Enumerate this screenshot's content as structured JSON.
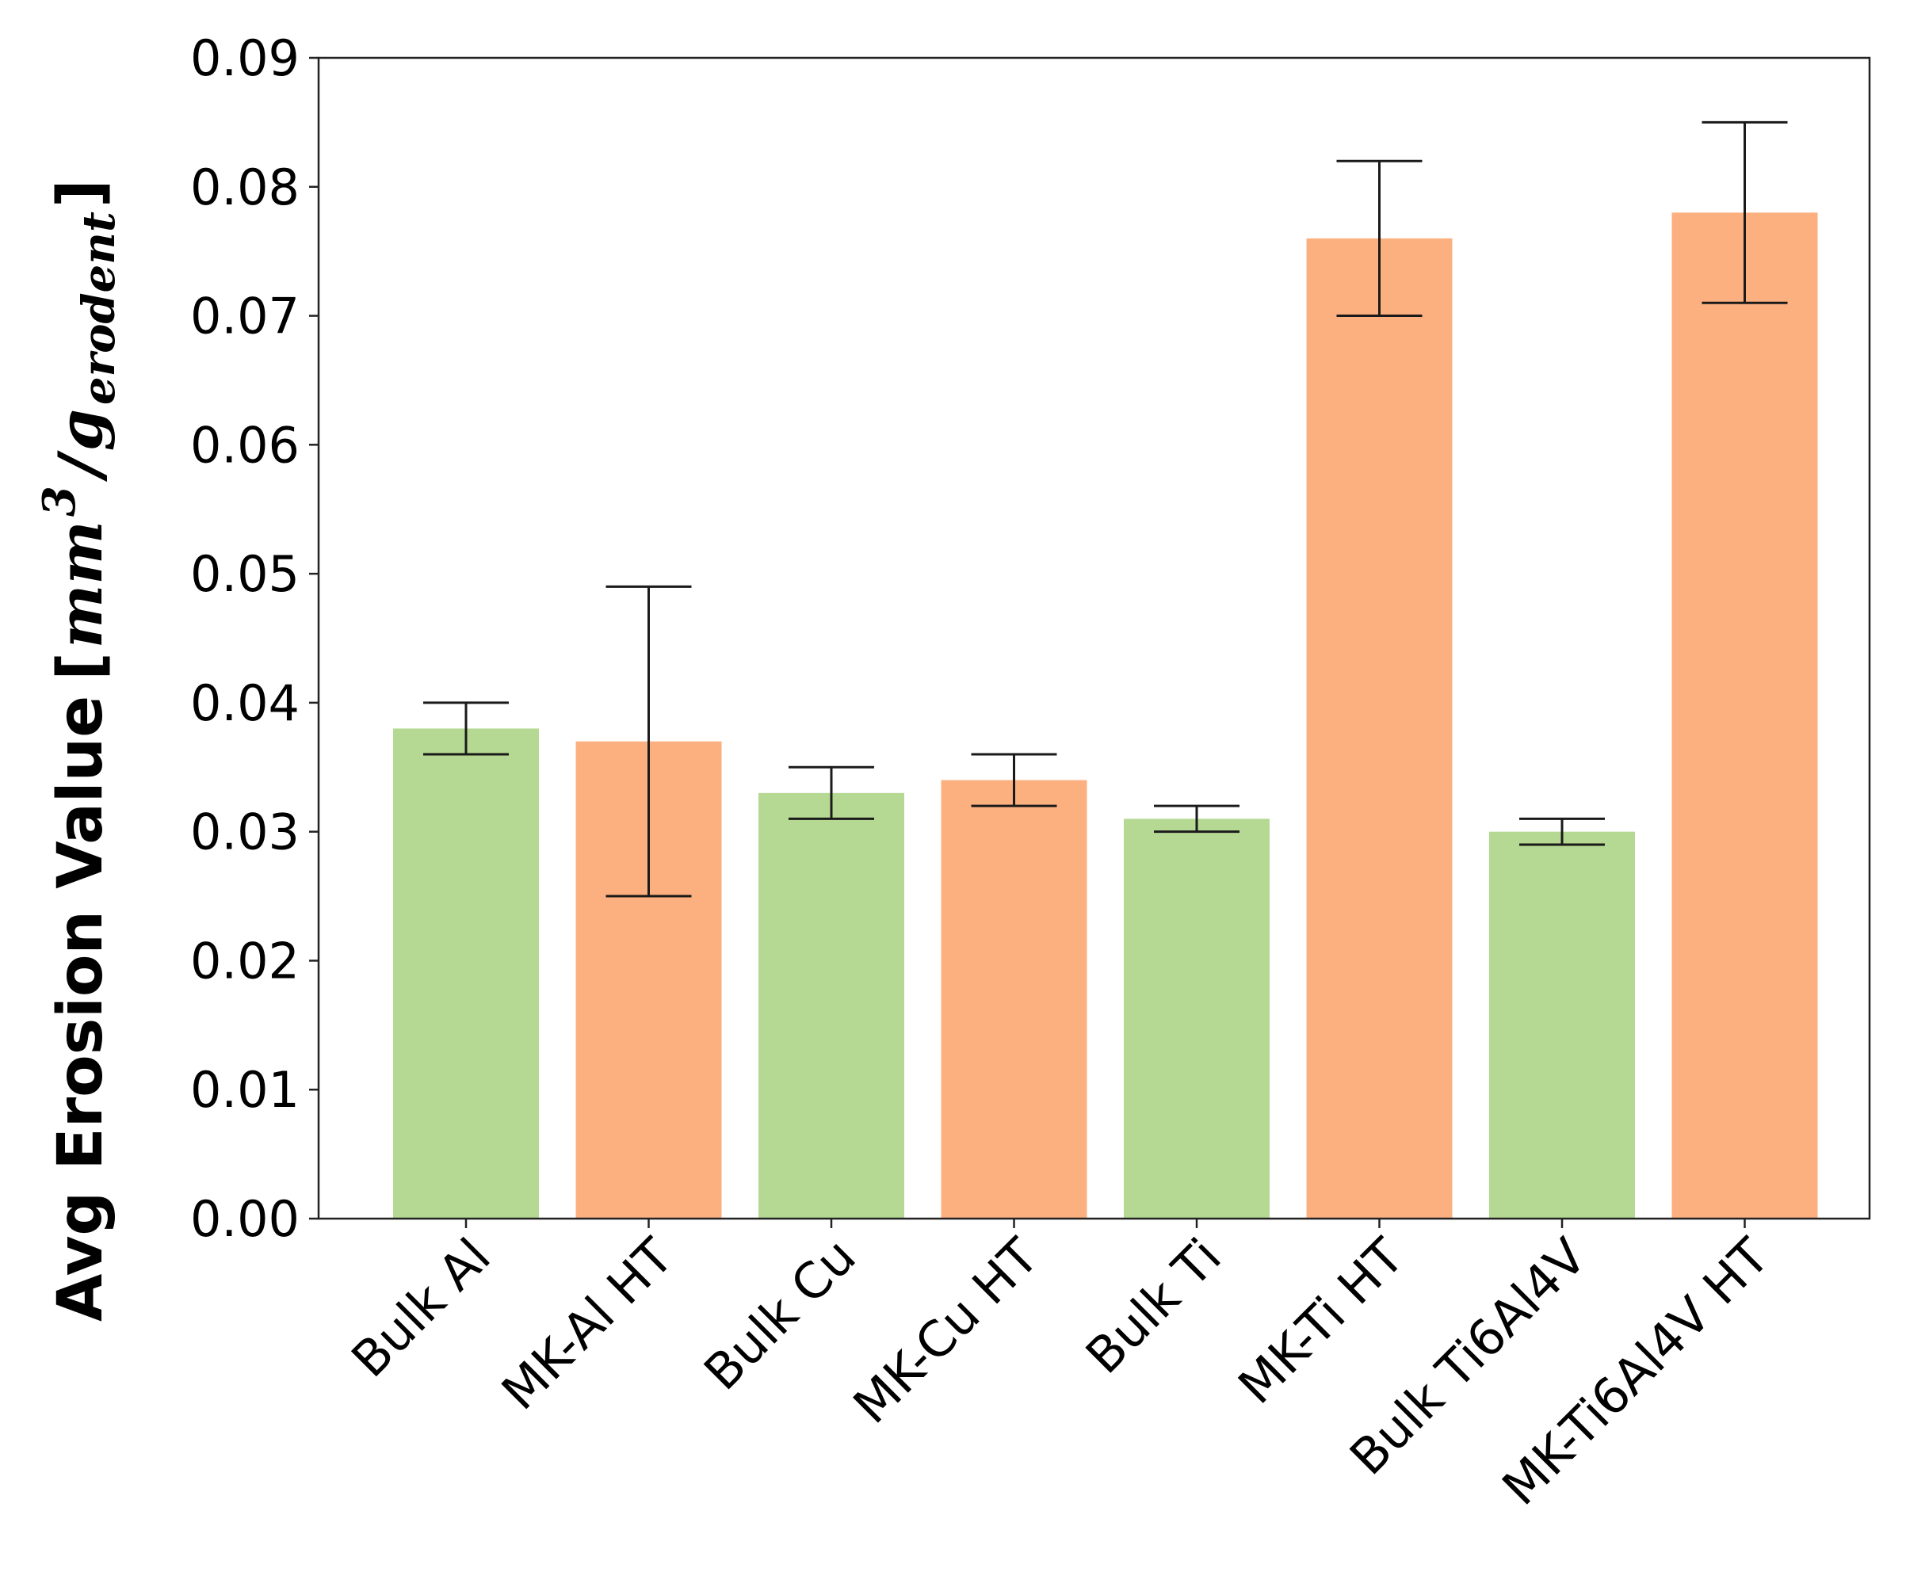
{
  "chart_data": {
    "type": "bar",
    "title": "",
    "xlabel": "",
    "ylabel": {
      "prefix": "Avg Erosion Value",
      "open_bracket": "[",
      "unit_main": "mm",
      "unit_power": "3",
      "slash": "/",
      "unit_g": "g",
      "unit_sub": "erodent",
      "close_bracket": "]"
    },
    "ylim": [
      0,
      0.09
    ],
    "yticks": [
      "0.00",
      "0.01",
      "0.02",
      "0.03",
      "0.04",
      "0.05",
      "0.06",
      "0.07",
      "0.08",
      "0.09"
    ],
    "grid": false,
    "categories": [
      "Bulk Al",
      "MK-Al HT",
      "Bulk Cu",
      "MK-Cu HT",
      "Bulk Ti",
      "MK-Ti HT",
      "Bulk Ti6Al4V",
      "MK-Ti6Al4V HT"
    ],
    "values": [
      0.038,
      0.037,
      0.033,
      0.034,
      0.031,
      0.076,
      0.03,
      0.078
    ],
    "error_low": [
      0.036,
      0.025,
      0.031,
      0.032,
      0.03,
      0.07,
      0.029,
      0.071
    ],
    "error_high": [
      0.04,
      0.049,
      0.035,
      0.036,
      0.032,
      0.082,
      0.031,
      0.085
    ],
    "colors": [
      "#b5d993",
      "#fdb07f",
      "#b5d993",
      "#fdb07f",
      "#b5d993",
      "#fdb07f",
      "#b5d993",
      "#fdb07f"
    ]
  }
}
